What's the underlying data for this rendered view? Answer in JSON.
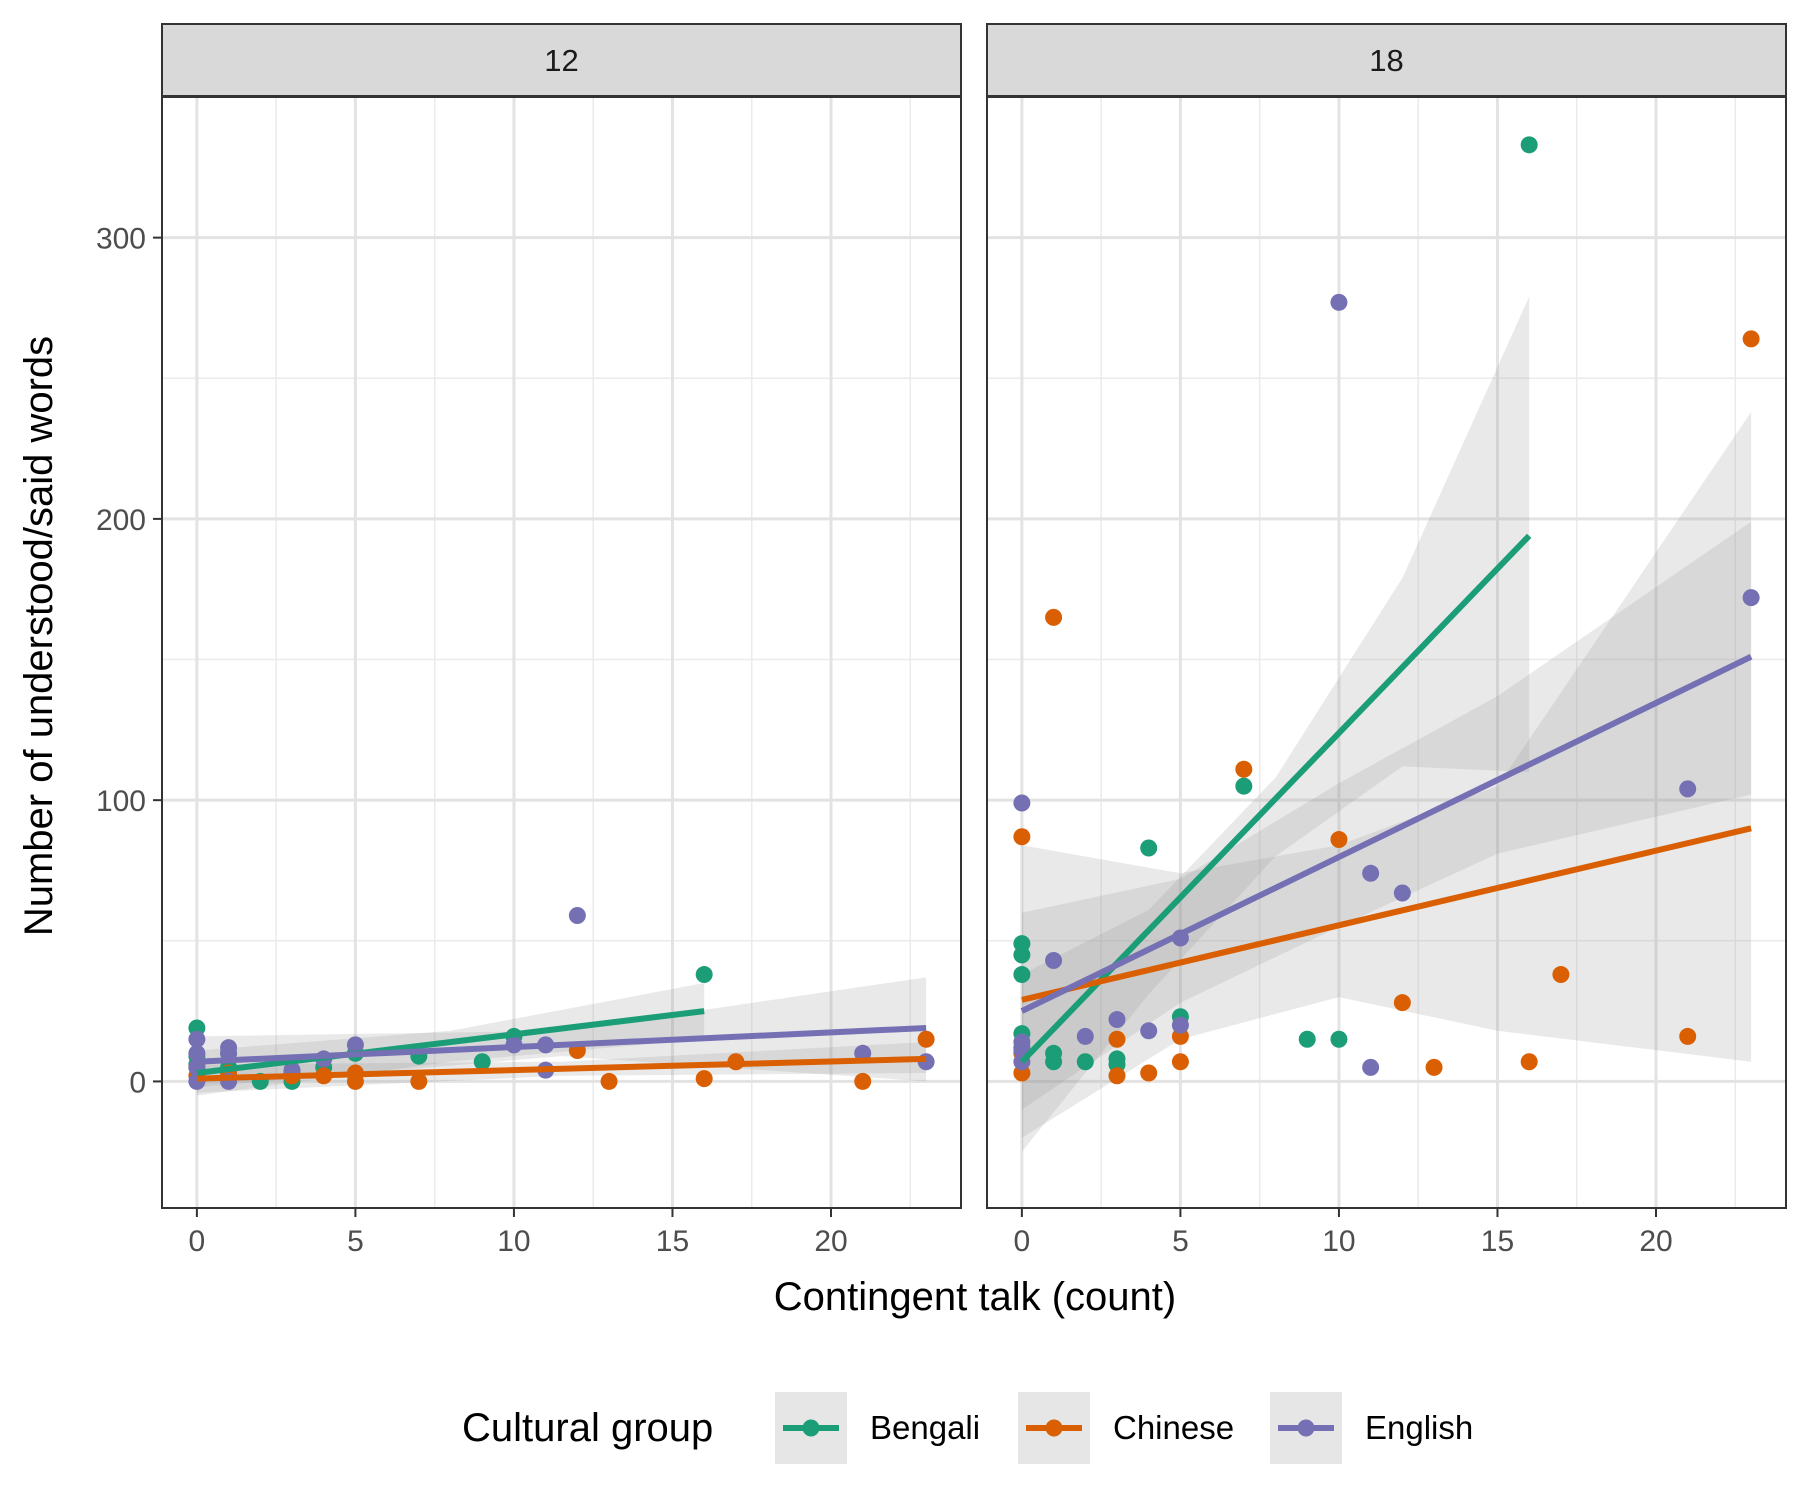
{
  "chart_data": {
    "type": "scatter",
    "xlabel": "Contingent talk (count)",
    "ylabel": "Number of understood/said words",
    "xlim": [
      -1.1,
      24.1
    ],
    "ylim": [
      -45,
      350
    ],
    "x_ticks": [
      0,
      5,
      10,
      15,
      20
    ],
    "y_ticks": [
      0,
      100,
      200,
      300
    ],
    "x_tick_labels": [
      "0",
      "5",
      "10",
      "15",
      "20"
    ],
    "y_tick_labels": [
      "0",
      "100",
      "200",
      "300"
    ],
    "grid": true,
    "legend_position": "bottom",
    "legend_title": "Cultural group",
    "series_meta": [
      {
        "name": "Bengali",
        "color": "#1b9e77"
      },
      {
        "name": "Chinese",
        "color": "#d95f02"
      },
      {
        "name": "English",
        "color": "#7570b3"
      }
    ],
    "panels": [
      {
        "label": "12",
        "series": [
          {
            "name": "Bengali",
            "points": [
              [
                0,
                19
              ],
              [
                0,
                9
              ],
              [
                0,
                6
              ],
              [
                1,
                10
              ],
              [
                1,
                5
              ],
              [
                2,
                0
              ],
              [
                3,
                0
              ],
              [
                3,
                3
              ],
              [
                4,
                5
              ],
              [
                5,
                10
              ],
              [
                7,
                9
              ],
              [
                9,
                7
              ],
              [
                10,
                16
              ],
              [
                16,
                38
              ]
            ],
            "fit": {
              "x": [
                0,
                16
              ],
              "y": [
                3,
                25
              ]
            },
            "band": {
              "x": [
                0,
                8,
                16
              ],
              "lower": [
                -5,
                7,
                15
              ],
              "upper": [
                11,
                18,
                35
              ]
            }
          },
          {
            "name": "Chinese",
            "points": [
              [
                0,
                5
              ],
              [
                0,
                2
              ],
              [
                1,
                3
              ],
              [
                3,
                2
              ],
              [
                4,
                2
              ],
              [
                5,
                0
              ],
              [
                5,
                3
              ],
              [
                7,
                0
              ],
              [
                12,
                11
              ],
              [
                13,
                0
              ],
              [
                16,
                1
              ],
              [
                17,
                7
              ],
              [
                21,
                0
              ],
              [
                23,
                15
              ]
            ],
            "fit": {
              "x": [
                0,
                23
              ],
              "y": [
                1,
                8
              ]
            },
            "band": {
              "x": [
                0,
                11.5,
                23
              ],
              "lower": [
                -4,
                2,
                3
              ],
              "upper": [
                6,
                7,
                14
              ]
            }
          },
          {
            "name": "English",
            "points": [
              [
                0,
                15
              ],
              [
                0,
                10
              ],
              [
                0,
                5
              ],
              [
                0,
                0
              ],
              [
                1,
                12
              ],
              [
                1,
                10
              ],
              [
                1,
                0
              ],
              [
                3,
                4
              ],
              [
                4,
                8
              ],
              [
                5,
                13
              ],
              [
                10,
                13
              ],
              [
                11,
                4
              ],
              [
                11,
                13
              ],
              [
                12,
                59
              ],
              [
                21,
                10
              ],
              [
                23,
                7
              ]
            ],
            "fit": {
              "x": [
                0,
                23
              ],
              "y": [
                7,
                19
              ]
            },
            "band": {
              "x": [
                0,
                11.5,
                23
              ],
              "lower": [
                -2,
                9,
                0
              ],
              "upper": [
                16,
                18,
                37
              ]
            }
          }
        ]
      },
      {
        "label": "18",
        "series": [
          {
            "name": "Bengali",
            "points": [
              [
                0,
                49
              ],
              [
                0,
                45
              ],
              [
                0,
                38
              ],
              [
                0,
                17
              ],
              [
                0,
                12
              ],
              [
                1,
                10
              ],
              [
                1,
                7
              ],
              [
                2,
                7
              ],
              [
                3,
                8
              ],
              [
                3,
                6
              ],
              [
                4,
                83
              ],
              [
                5,
                23
              ],
              [
                7,
                105
              ],
              [
                9,
                15
              ],
              [
                10,
                15
              ],
              [
                16,
                333
              ]
            ],
            "fit": {
              "x": [
                0,
                16
              ],
              "y": [
                7,
                194
              ]
            },
            "band": {
              "x": [
                0,
                4,
                8,
                12,
                16
              ],
              "lower": [
                -25,
                31,
                80,
                112,
                110
              ],
              "upper": [
                38,
                61,
                108,
                179,
                279
              ]
            }
          },
          {
            "name": "Chinese",
            "points": [
              [
                0,
                87
              ],
              [
                0,
                10
              ],
              [
                0,
                3
              ],
              [
                1,
                165
              ],
              [
                3,
                15
              ],
              [
                3,
                2
              ],
              [
                4,
                3
              ],
              [
                5,
                16
              ],
              [
                5,
                7
              ],
              [
                7,
                111
              ],
              [
                10,
                86
              ],
              [
                12,
                28
              ],
              [
                13,
                5
              ],
              [
                16,
                7
              ],
              [
                17,
                38
              ],
              [
                21,
                16
              ],
              [
                23,
                264
              ]
            ],
            "fit": {
              "x": [
                0,
                23
              ],
              "y": [
                29,
                90
              ]
            },
            "band": {
              "x": [
                0,
                5,
                10,
                15,
                23
              ],
              "lower": [
                -20,
                15,
                30,
                18,
                7
              ],
              "upper": [
                84,
                74,
                84,
                105,
                238
              ]
            }
          },
          {
            "name": "English",
            "points": [
              [
                0,
                99
              ],
              [
                0,
                14
              ],
              [
                0,
                11
              ],
              [
                0,
                7
              ],
              [
                1,
                43
              ],
              [
                2,
                16
              ],
              [
                3,
                22
              ],
              [
                4,
                18
              ],
              [
                5,
                51
              ],
              [
                5,
                20
              ],
              [
                10,
                277
              ],
              [
                11,
                74
              ],
              [
                11,
                5
              ],
              [
                12,
                67
              ],
              [
                21,
                104
              ],
              [
                23,
                172
              ]
            ],
            "fit": {
              "x": [
                0,
                23
              ],
              "y": [
                25,
                151
              ]
            },
            "band": {
              "x": [
                0,
                5,
                10,
                15,
                23
              ],
              "lower": [
                -10,
                28,
                55,
                81,
                102
              ],
              "upper": [
                60,
                72,
                106,
                137,
                199
              ]
            }
          }
        ]
      }
    ]
  }
}
